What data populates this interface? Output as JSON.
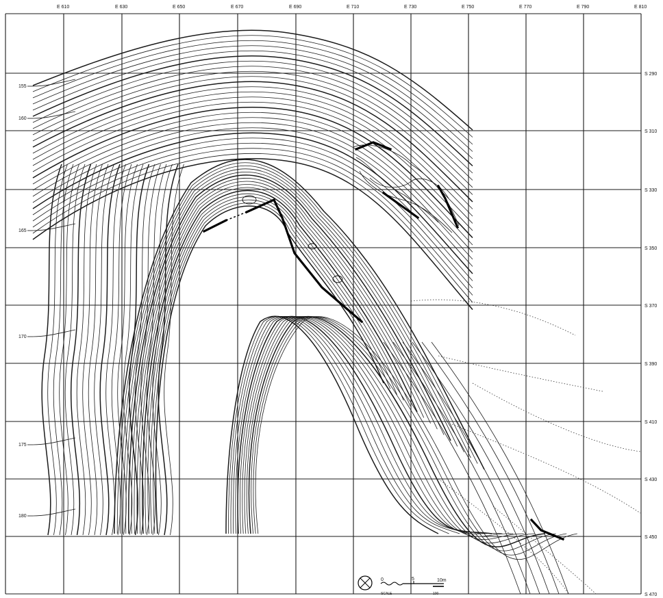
{
  "map": {
    "easting_labels": [
      "E 610",
      "E 630",
      "E 650",
      "E 670",
      "E 690",
      "E 710",
      "E 730",
      "E 750",
      "E 770",
      "E 790",
      "E 810"
    ],
    "southing_labels": [
      "S 290",
      "S 310",
      "S 330",
      "S 350",
      "S 370",
      "S 390",
      "S 410",
      "S 430",
      "S 450",
      "S 470"
    ],
    "elevation_labels": [
      "155",
      "160",
      "165",
      "170",
      "175",
      "180"
    ],
    "north_arrow": "north-arrow-icon",
    "scale_bar": {
      "left_ticks": "0",
      "mid_tick": "5",
      "right_tick": "10m",
      "caption_left": "SCALE",
      "caption_right": "100"
    }
  }
}
